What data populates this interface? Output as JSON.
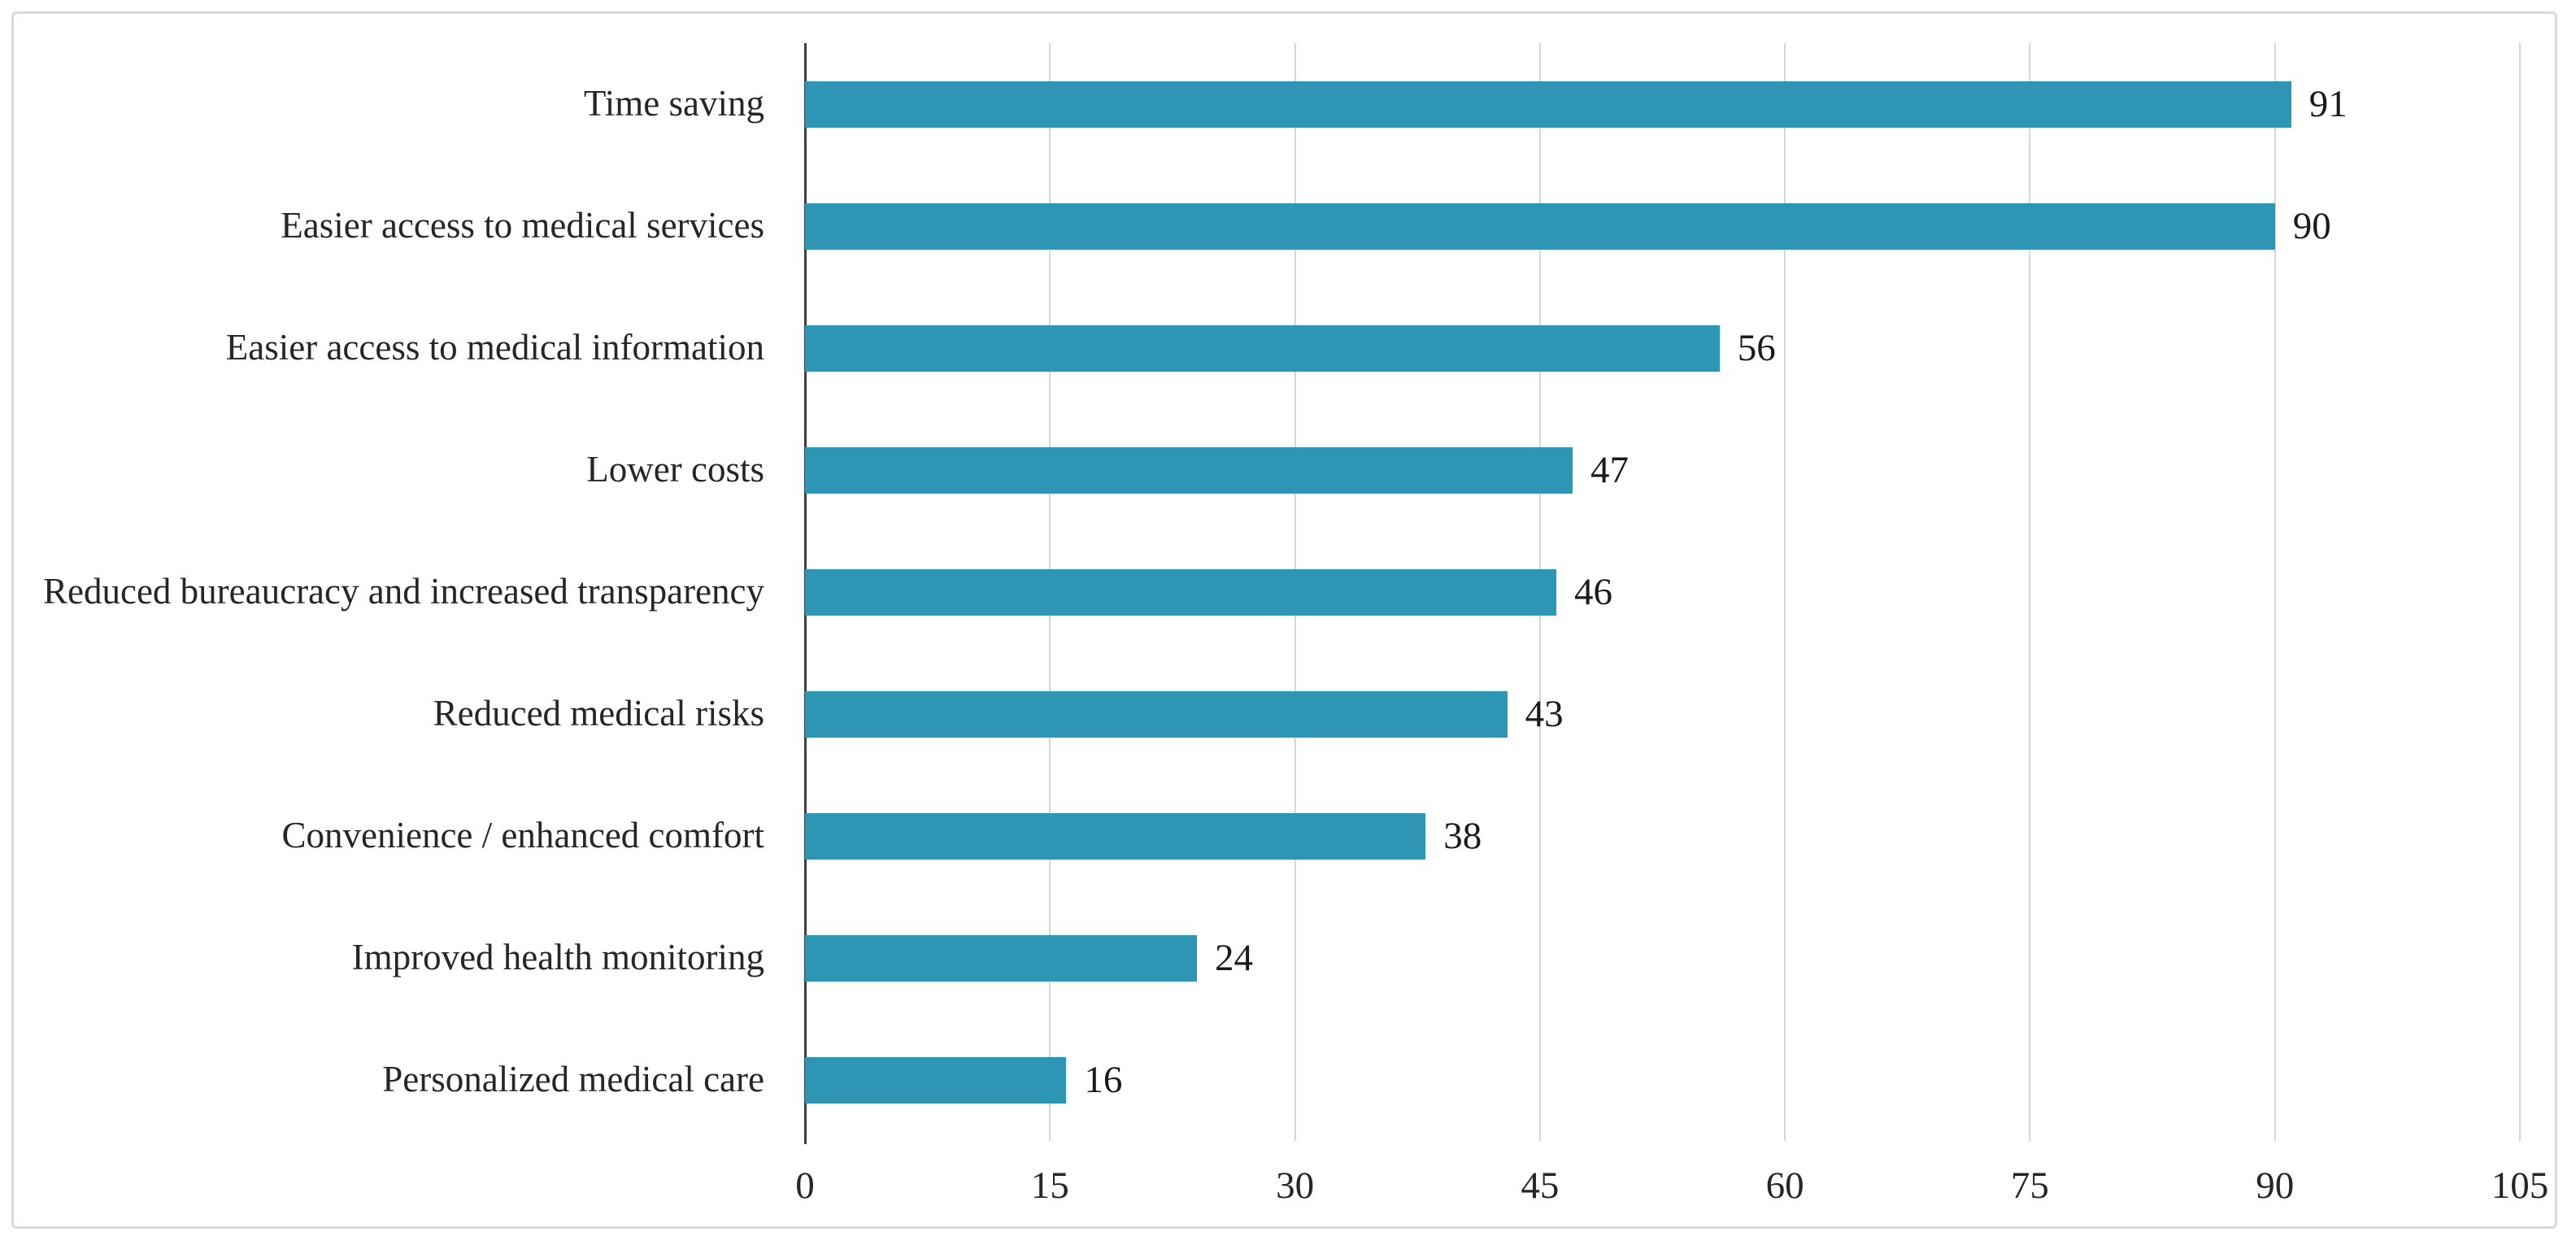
{
  "chart_data": {
    "type": "bar",
    "orientation": "horizontal",
    "title": "",
    "xlabel": "",
    "ylabel": "",
    "legend": null,
    "grid": "vertical",
    "categories": [
      "Time saving",
      "Easier access to medical services",
      "Easier access to medical information",
      "Lower costs",
      "Reduced bureaucracy and increased transparency",
      "Reduced medical risks",
      "Convenience / enhanced comfort",
      "Improved health monitoring",
      "Personalized medical care"
    ],
    "values": [
      91,
      90,
      56,
      47,
      46,
      43,
      38,
      24,
      16
    ],
    "xticks": [
      0,
      15,
      30,
      45,
      60,
      75,
      90,
      105
    ],
    "xlim": [
      0,
      105
    ],
    "colors": {
      "bar": "#2e96b4",
      "gridline": "#d6d6d6",
      "axis_line": "#3f3f3f",
      "text": "#262626",
      "frame_border": "#d9d9d9",
      "background": "#ffffff"
    }
  }
}
